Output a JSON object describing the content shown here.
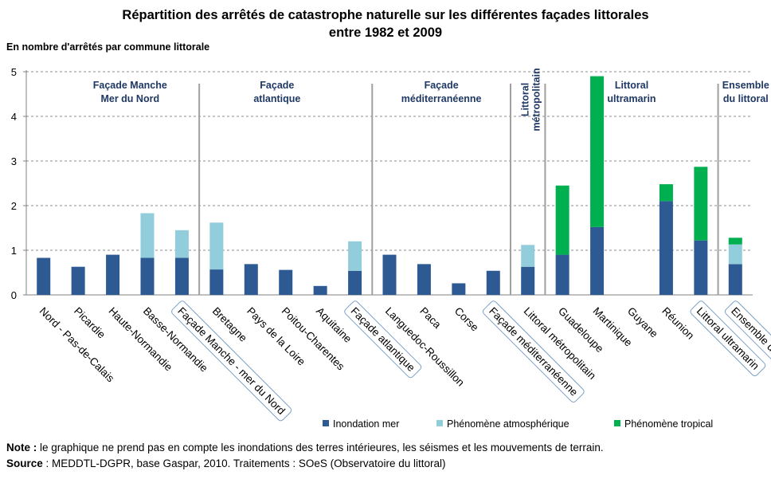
{
  "chart_data": {
    "type": "bar",
    "stacked": true,
    "title_line1": "Répartition des arrêtés de catastrophe naturelle sur les différentes façades littorales",
    "title_line2": "entre 1982 et 2009",
    "ylabel": "En nombre d'arrêtés par commune littorale",
    "ylim": [
      0,
      5
    ],
    "yticks": [
      "0",
      "1",
      "2",
      "3",
      "4",
      "5"
    ],
    "grid": true,
    "legend_position": "bottom-right",
    "categories": [
      "Nord - Pas-de-Calais",
      "Picardie",
      "Haute-Normandie",
      "Basse-Normandie",
      "Façade Manche - mer du Nord",
      "Bretagne",
      "Pays de la Loire",
      "Poitou-Charentes",
      "Aquitaine",
      "Façade atlantique",
      "Languedoc-Roussillon",
      "Paca",
      "Corse",
      "Façade méditerranéenne",
      "Littoral métropolitain",
      "Guadeloupe",
      "Martinique",
      "Guyane",
      "Réunion",
      "Littoral ultramarin",
      "Ensemble du littoral"
    ],
    "boxed_categories": [
      "Façade Manche - mer du Nord",
      "Façade atlantique",
      "Façade méditerranéenne",
      "Littoral ultramarin",
      "Ensemble du littoral"
    ],
    "series": [
      {
        "name": "Inondation mer",
        "color": "#2e5a94",
        "values": [
          0.83,
          0.63,
          0.9,
          0.83,
          0.83,
          0.57,
          0.69,
          0.56,
          0.2,
          0.54,
          0.9,
          0.69,
          0.26,
          0.54,
          0.63,
          0.9,
          1.52,
          0.0,
          2.1,
          1.22,
          0.69
        ]
      },
      {
        "name": "Phénomène atmosphérique",
        "color": "#92cddc",
        "values": [
          0.0,
          0.0,
          0.0,
          1.0,
          0.62,
          1.05,
          0.0,
          0.0,
          0.0,
          0.66,
          0.0,
          0.0,
          0.0,
          0.0,
          0.49,
          0.0,
          0.0,
          0.0,
          0.0,
          0.0,
          0.44
        ]
      },
      {
        "name": "Phénomène tropical",
        "color": "#00b050",
        "values": [
          0.0,
          0.0,
          0.0,
          0.0,
          0.0,
          0.0,
          0.0,
          0.0,
          0.0,
          0.0,
          0.0,
          0.0,
          0.0,
          0.0,
          0.0,
          1.55,
          3.38,
          0.0,
          0.38,
          1.65,
          0.15
        ]
      }
    ],
    "group_labels": [
      {
        "lines": [
          "Façade Manche",
          "Mer du Nord"
        ],
        "center_index": 2.5
      },
      {
        "lines": [
          "Façade",
          "atlantique"
        ],
        "center_index": 6.75
      },
      {
        "lines": [
          "Façade",
          "méditerranéenne"
        ],
        "center_index": 11.5
      },
      {
        "lines": [
          "Littoral",
          "métropolitain"
        ],
        "center_index": 14.0,
        "vertical": true
      },
      {
        "lines": [
          "Littoral",
          "ultramarin"
        ],
        "center_index": 17.0
      },
      {
        "lines": [
          "Ensemble",
          "du littoral"
        ],
        "center_index": 20.3
      }
    ],
    "separators_after_index": [
      4,
      9,
      13,
      14,
      19
    ]
  },
  "notes": {
    "note_label": "Note :",
    "note_text": " le graphique ne prend pas en compte les inondations des terres intérieures, les séismes et les mouvements de terrain.",
    "source_label": "Source",
    "source_text": " : MEDDTL-DGPR, base Gaspar, 2010. Traitements : SOeS (Observatoire du littoral)"
  }
}
